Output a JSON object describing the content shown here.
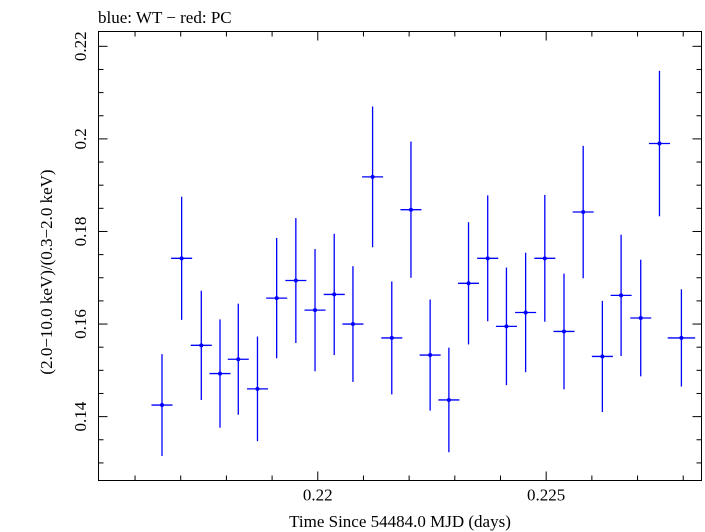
{
  "chart_data": {
    "type": "scatter",
    "title": "blue: WT − red: PC",
    "xlabel": "Time Since 54484.0 MJD (days)",
    "ylabel": "(2.0−10.0 keV)/(0.3−2.0 keV)",
    "xlim": [
      0.2152,
      0.2284
    ],
    "ylim": [
      0.1262,
      0.2232
    ],
    "x_ticks": [
      0.22,
      0.225
    ],
    "x_tick_labels": [
      "0.22",
      "0.225"
    ],
    "y_ticks": [
      0.14,
      0.16,
      0.18,
      0.2,
      0.22
    ],
    "y_tick_labels": [
      "0.14",
      "0.16",
      "0.18",
      "0.2",
      "0.22"
    ],
    "grid": false,
    "series": [
      {
        "color": "#0000ff",
        "points": [
          {
            "x": 0.21659,
            "xerr": 0.00023,
            "y": 0.1425,
            "yerr": 0.011
          },
          {
            "x": 0.21702,
            "xerr": 0.00023,
            "y": 0.1742,
            "yerr": 0.0133
          },
          {
            "x": 0.21745,
            "xerr": 0.00023,
            "y": 0.1554,
            "yerr": 0.0118
          },
          {
            "x": 0.21786,
            "xerr": 0.00023,
            "y": 0.1493,
            "yerr": 0.0117
          },
          {
            "x": 0.21826,
            "xerr": 0.00023,
            "y": 0.1524,
            "yerr": 0.012
          },
          {
            "x": 0.21868,
            "xerr": 0.00023,
            "y": 0.146,
            "yerr": 0.0113
          },
          {
            "x": 0.2191,
            "xerr": 0.00023,
            "y": 0.1656,
            "yerr": 0.013
          },
          {
            "x": 0.21952,
            "xerr": 0.00023,
            "y": 0.1694,
            "yerr": 0.0135
          },
          {
            "x": 0.21994,
            "xerr": 0.00023,
            "y": 0.163,
            "yerr": 0.0132
          },
          {
            "x": 0.22036,
            "xerr": 0.00023,
            "y": 0.1664,
            "yerr": 0.0131
          },
          {
            "x": 0.22077,
            "xerr": 0.00023,
            "y": 0.16,
            "yerr": 0.0125
          },
          {
            "x": 0.2212,
            "xerr": 0.00023,
            "y": 0.1918,
            "yerr": 0.0152
          },
          {
            "x": 0.22162,
            "xerr": 0.00023,
            "y": 0.157,
            "yerr": 0.0122
          },
          {
            "x": 0.22204,
            "xerr": 0.00023,
            "y": 0.1847,
            "yerr": 0.0147
          },
          {
            "x": 0.22246,
            "xerr": 0.00023,
            "y": 0.1533,
            "yerr": 0.012
          },
          {
            "x": 0.22287,
            "xerr": 0.00023,
            "y": 0.1436,
            "yerr": 0.0113
          },
          {
            "x": 0.2233,
            "xerr": 0.00023,
            "y": 0.1688,
            "yerr": 0.0132
          },
          {
            "x": 0.22372,
            "xerr": 0.00023,
            "y": 0.1742,
            "yerr": 0.0136
          },
          {
            "x": 0.22413,
            "xerr": 0.00023,
            "y": 0.1595,
            "yerr": 0.0127
          },
          {
            "x": 0.22455,
            "xerr": 0.00023,
            "y": 0.1625,
            "yerr": 0.0129
          },
          {
            "x": 0.22497,
            "xerr": 0.00023,
            "y": 0.1742,
            "yerr": 0.0137
          },
          {
            "x": 0.22539,
            "xerr": 0.00023,
            "y": 0.1584,
            "yerr": 0.0125
          },
          {
            "x": 0.22581,
            "xerr": 0.00023,
            "y": 0.1842,
            "yerr": 0.0143
          },
          {
            "x": 0.22623,
            "xerr": 0.00023,
            "y": 0.153,
            "yerr": 0.012
          },
          {
            "x": 0.22664,
            "xerr": 0.00023,
            "y": 0.1662,
            "yerr": 0.0131
          },
          {
            "x": 0.22707,
            "xerr": 0.00023,
            "y": 0.1613,
            "yerr": 0.0126
          },
          {
            "x": 0.22748,
            "xerr": 0.00023,
            "y": 0.199,
            "yerr": 0.0157
          },
          {
            "x": 0.22796,
            "xerr": 0.0003,
            "y": 0.157,
            "yerr": 0.0105
          }
        ]
      }
    ]
  }
}
